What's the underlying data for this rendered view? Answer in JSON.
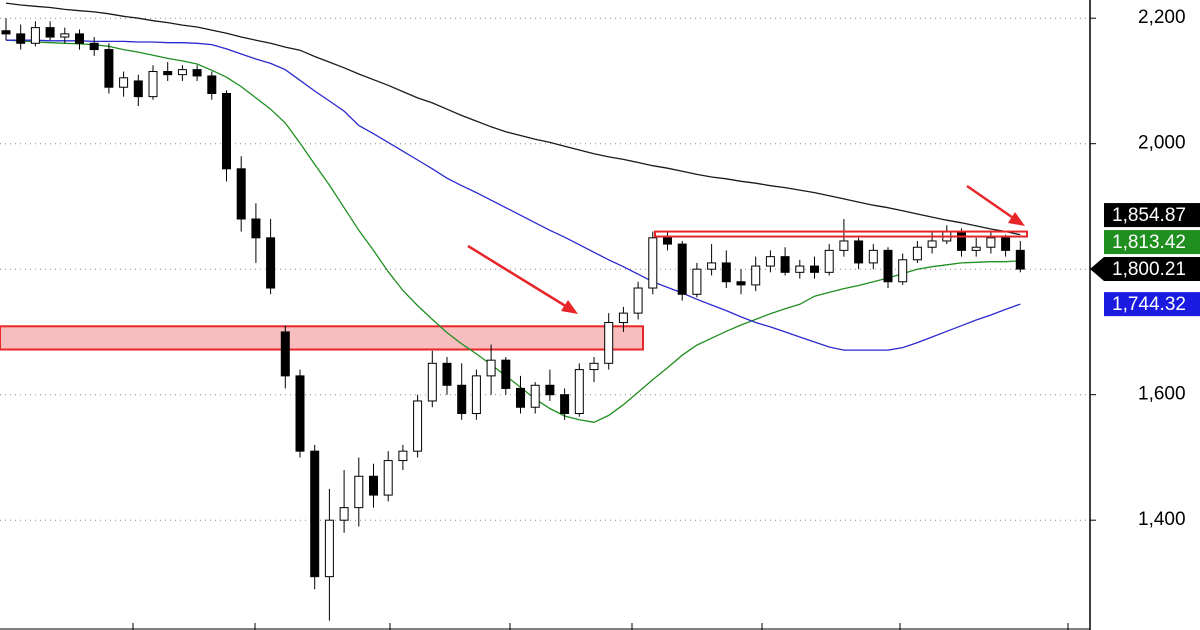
{
  "chart_data": {
    "type": "candlestick",
    "ylim": [
      1225,
      2229
    ],
    "yticks": [
      {
        "value": 1400,
        "label": "1,400"
      },
      {
        "value": 1600,
        "label": "1,600"
      },
      {
        "value": 1800,
        "label": "1,800"
      },
      {
        "value": 2000,
        "label": "2,000"
      },
      {
        "value": 2200,
        "label": "2,200"
      }
    ],
    "grid": true,
    "up_color": "#ffffff",
    "down_color": "#000000",
    "open": [
      2180,
      2175,
      2160,
      2185,
      2170,
      2175,
      2160,
      2150,
      2090,
      2100,
      2075,
      2115,
      2110,
      2118,
      2108,
      2080,
      1960,
      1880,
      1850,
      1700,
      1630,
      1510,
      1310,
      1400,
      1420,
      1470,
      1440,
      1495,
      1510,
      1590,
      1650,
      1615,
      1570,
      1630,
      1655,
      1610,
      1580,
      1615,
      1600,
      1570,
      1640,
      1650,
      1715,
      1730,
      1770,
      1850,
      1840,
      1760,
      1800,
      1810,
      1780,
      1775,
      1805,
      1820,
      1795,
      1805,
      1795,
      1830,
      1845,
      1810,
      1830,
      1780,
      1815,
      1835,
      1845,
      1860,
      1830,
      1835,
      1850,
      1830
    ],
    "high": [
      2200,
      2190,
      2195,
      2195,
      2185,
      2182,
      2170,
      2160,
      2115,
      2110,
      2125,
      2130,
      2125,
      2125,
      2115,
      2085,
      1980,
      1905,
      1880,
      1710,
      1640,
      1520,
      1450,
      1480,
      1500,
      1490,
      1510,
      1520,
      1600,
      1670,
      1660,
      1650,
      1640,
      1680,
      1660,
      1630,
      1620,
      1640,
      1610,
      1650,
      1660,
      1730,
      1740,
      1780,
      1860,
      1860,
      1845,
      1810,
      1840,
      1830,
      1800,
      1820,
      1830,
      1835,
      1815,
      1820,
      1840,
      1880,
      1850,
      1840,
      1835,
      1825,
      1845,
      1860,
      1870,
      1865,
      1850,
      1860,
      1855,
      1845
    ],
    "low": [
      2165,
      2150,
      2155,
      2165,
      2160,
      2150,
      2140,
      2080,
      2075,
      2060,
      2070,
      2100,
      2100,
      2100,
      2070,
      1940,
      1860,
      1810,
      1760,
      1610,
      1500,
      1290,
      1240,
      1380,
      1390,
      1420,
      1430,
      1480,
      1500,
      1580,
      1600,
      1560,
      1560,
      1600,
      1600,
      1570,
      1570,
      1590,
      1560,
      1565,
      1620,
      1640,
      1700,
      1720,
      1760,
      1830,
      1750,
      1755,
      1790,
      1770,
      1760,
      1765,
      1795,
      1790,
      1785,
      1785,
      1790,
      1820,
      1800,
      1800,
      1770,
      1775,
      1810,
      1825,
      1840,
      1820,
      1820,
      1825,
      1820,
      1795
    ],
    "close": [
      2175,
      2160,
      2185,
      2170,
      2175,
      2160,
      2150,
      2090,
      2105,
      2075,
      2115,
      2110,
      2118,
      2108,
      2080,
      1960,
      1880,
      1850,
      1770,
      1630,
      1510,
      1310,
      1400,
      1420,
      1470,
      1440,
      1495,
      1510,
      1590,
      1650,
      1615,
      1570,
      1630,
      1655,
      1610,
      1580,
      1615,
      1600,
      1570,
      1640,
      1650,
      1715,
      1730,
      1770,
      1850,
      1840,
      1760,
      1800,
      1810,
      1780,
      1775,
      1805,
      1820,
      1795,
      1805,
      1795,
      1830,
      1845,
      1810,
      1830,
      1780,
      1815,
      1835,
      1845,
      1860,
      1830,
      1835,
      1850,
      1830,
      1800.21
    ],
    "close_label": "1,800.21",
    "moving_averages": [
      {
        "color": "#1a1a1a",
        "label_color": "#000000",
        "last_value_label": "1,854.87",
        "values": [
          2224,
          2221,
          2219,
          2217,
          2214,
          2212,
          2210,
          2207,
          2203,
          2200,
          2196,
          2193,
          2189,
          2186,
          2181,
          2176,
          2170,
          2165,
          2160,
          2154,
          2149,
          2139,
          2130,
          2121,
          2111,
          2102,
          2093,
          2083,
          2073,
          2065,
          2055,
          2045,
          2036,
          2027,
          2019,
          2013,
          2007,
          2002,
          1996,
          1990,
          1984,
          1979,
          1975,
          1970,
          1965,
          1961,
          1956,
          1951,
          1947,
          1944,
          1940,
          1937,
          1933,
          1930,
          1926,
          1922,
          1917,
          1912,
          1907,
          1902,
          1898,
          1893,
          1888,
          1883,
          1878,
          1874,
          1869,
          1864,
          1860,
          1854.87
        ]
      },
      {
        "color": "#1f8f1f",
        "label_color": "#1f8f1f",
        "last_value_label": "1,813.42",
        "values": [
          2165,
          2164,
          2162,
          2161,
          2160,
          2159,
          2158,
          2155,
          2150,
          2146,
          2141,
          2136,
          2132,
          2127,
          2117,
          2106,
          2091,
          2073,
          2055,
          2033,
          2001,
          1967,
          1934,
          1898,
          1862,
          1830,
          1796,
          1766,
          1742,
          1720,
          1699,
          1681,
          1665,
          1648,
          1630,
          1612,
          1593,
          1578,
          1566,
          1560,
          1556,
          1567,
          1584,
          1604,
          1624,
          1643,
          1663,
          1679,
          1690,
          1701,
          1711,
          1720,
          1729,
          1737,
          1744,
          1757,
          1763,
          1769,
          1774,
          1780,
          1786,
          1793,
          1800,
          1804,
          1807,
          1810,
          1811,
          1812,
          1812,
          1813.42
        ]
      },
      {
        "color": "#2a2ad0",
        "label_color": "#1a1ae0",
        "last_value_label": "1,744.32",
        "values": [
          2165,
          2165,
          2165,
          2164,
          2164,
          2164,
          2163,
          2163,
          2163,
          2162,
          2162,
          2161,
          2161,
          2160,
          2158,
          2151,
          2143,
          2135,
          2128,
          2118,
          2101,
          2084,
          2068,
          2052,
          2029,
          2016,
          2002,
          1988,
          1974,
          1960,
          1945,
          1933,
          1922,
          1910,
          1898,
          1886,
          1874,
          1862,
          1851,
          1839,
          1827,
          1815,
          1804,
          1792,
          1780,
          1771,
          1762,
          1752,
          1743,
          1734,
          1724,
          1715,
          1708,
          1700,
          1692,
          1684,
          1676,
          1671,
          1671,
          1671,
          1671,
          1675,
          1683,
          1692,
          1701,
          1710,
          1719,
          1727,
          1736,
          1744.32
        ]
      }
    ],
    "annotations": {
      "zone": {
        "ylim": [
          1672,
          1709
        ],
        "color": "#e8262a"
      },
      "resistance": {
        "value": 1856,
        "color": "#e8262a"
      }
    }
  }
}
